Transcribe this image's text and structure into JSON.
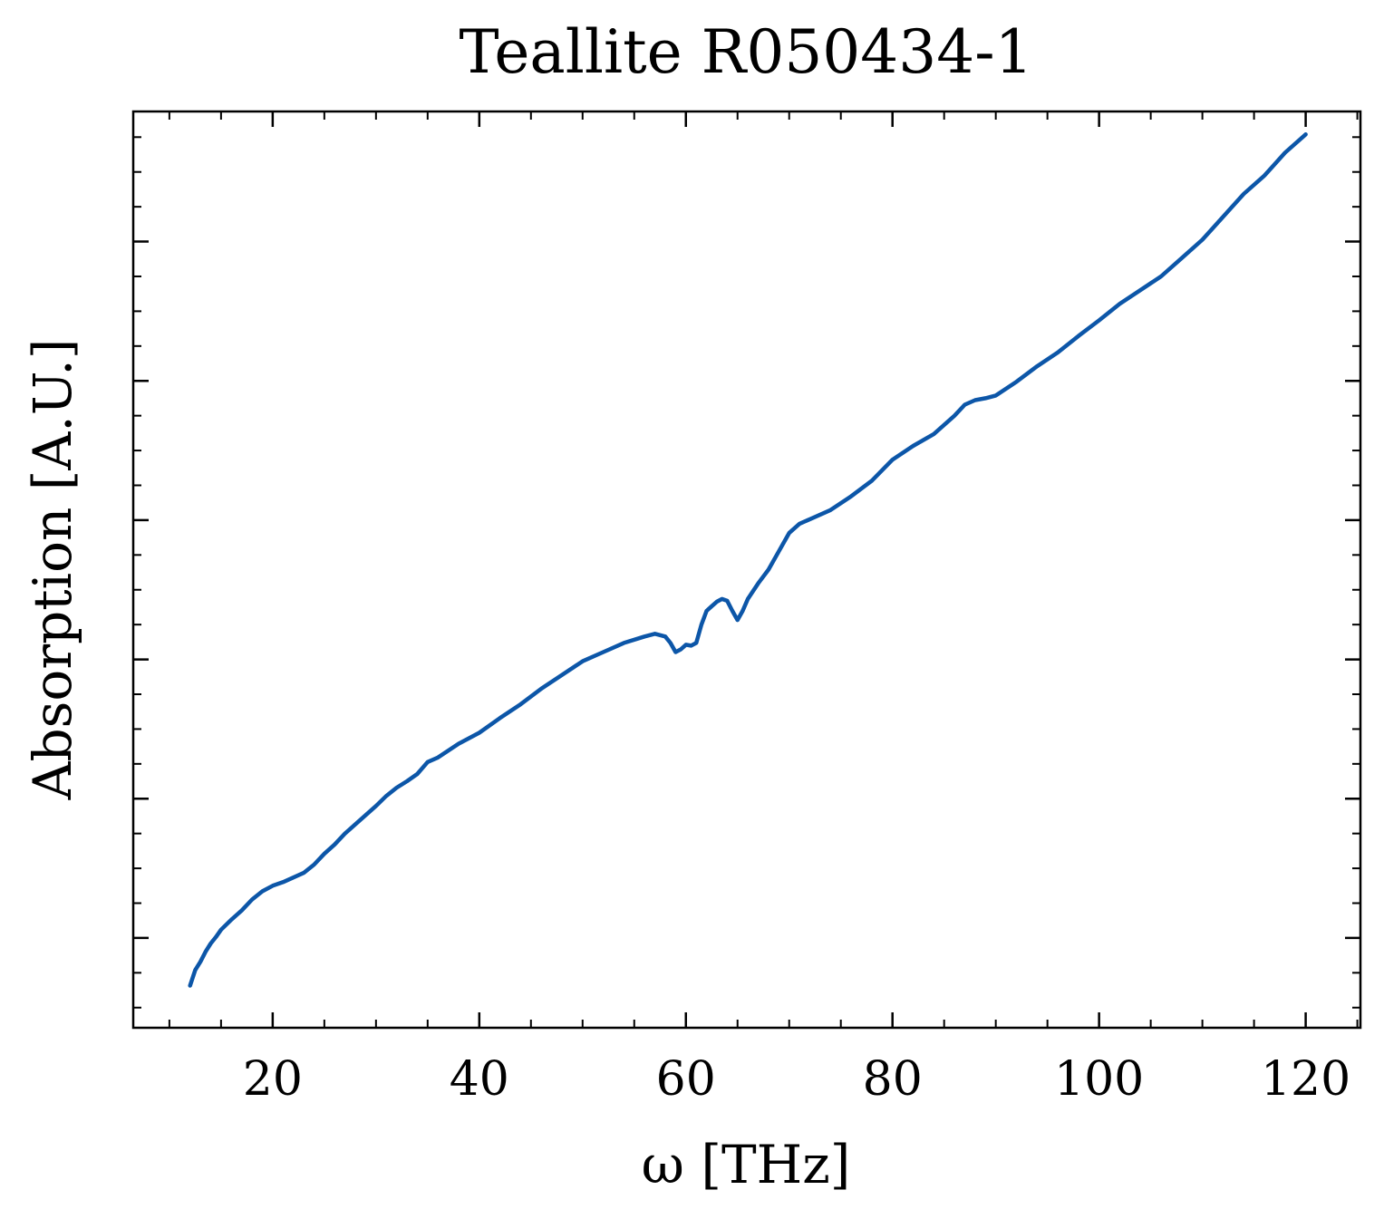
{
  "chart_data": {
    "type": "line",
    "title": "Teallite R050434-1",
    "xlabel": "ω [THz]",
    "ylabel": "Absorption [A.U.]",
    "xlim": [
      6.5,
      125.3
    ],
    "ylim": [
      0,
      1
    ],
    "xticks": [
      20,
      40,
      60,
      80,
      100,
      120
    ],
    "xtick_labels": [
      "20",
      "40",
      "60",
      "80",
      "100",
      "120"
    ],
    "x_minor_step": 5,
    "yticks_major": [
      0.098,
      0.25,
      0.402,
      0.554,
      0.706,
      0.858
    ],
    "ytick_labels_visible": false,
    "y_minor_step": 0.038,
    "grid": false,
    "legend": "none",
    "series": [
      {
        "color": "#0c56a8",
        "x": [
          12.0,
          12.5,
          13.0,
          13.5,
          14.0,
          14.5,
          15.0,
          16.0,
          17.0,
          18.0,
          19.0,
          20.0,
          21.0,
          22.0,
          23.0,
          24.0,
          25.0,
          26.0,
          27.0,
          28.0,
          29.0,
          30.0,
          31.0,
          32.0,
          33.0,
          34.0,
          35.0,
          36.0,
          38.0,
          40.0,
          42.0,
          44.0,
          46.0,
          48.0,
          50.0,
          52.0,
          54.0,
          56.0,
          57.0,
          58.0,
          58.5,
          59.0,
          59.5,
          60.0,
          60.5,
          61.0,
          61.5,
          62.0,
          62.5,
          63.0,
          63.5,
          64.0,
          64.5,
          65.0,
          65.5,
          66.0,
          67.0,
          68.0,
          69.0,
          70.0,
          71.0,
          72.0,
          74.0,
          76.0,
          78.0,
          80.0,
          82.0,
          84.0,
          86.0,
          87.0,
          88.0,
          89.0,
          90.0,
          92.0,
          94.0,
          96.0,
          98.0,
          100.0,
          102.0,
          104.0,
          106.0,
          108.0,
          110.0,
          112.0,
          114.0,
          116.0,
          118.0,
          120.0
        ],
        "y": [
          0.046,
          0.063,
          0.072,
          0.083,
          0.092,
          0.099,
          0.107,
          0.118,
          0.128,
          0.14,
          0.149,
          0.155,
          0.159,
          0.164,
          0.169,
          0.178,
          0.19,
          0.2,
          0.212,
          0.222,
          0.232,
          0.242,
          0.253,
          0.262,
          0.269,
          0.277,
          0.29,
          0.295,
          0.31,
          0.322,
          0.338,
          0.353,
          0.37,
          0.385,
          0.4,
          0.41,
          0.42,
          0.427,
          0.43,
          0.427,
          0.42,
          0.41,
          0.413,
          0.418,
          0.417,
          0.42,
          0.44,
          0.455,
          0.46,
          0.465,
          0.468,
          0.466,
          0.455,
          0.445,
          0.455,
          0.468,
          0.485,
          0.5,
          0.52,
          0.54,
          0.55,
          0.555,
          0.565,
          0.58,
          0.597,
          0.62,
          0.635,
          0.648,
          0.668,
          0.68,
          0.685,
          0.687,
          0.69,
          0.705,
          0.722,
          0.737,
          0.755,
          0.772,
          0.79,
          0.805,
          0.82,
          0.84,
          0.86,
          0.885,
          0.91,
          0.93,
          0.955,
          0.975
        ]
      }
    ]
  }
}
